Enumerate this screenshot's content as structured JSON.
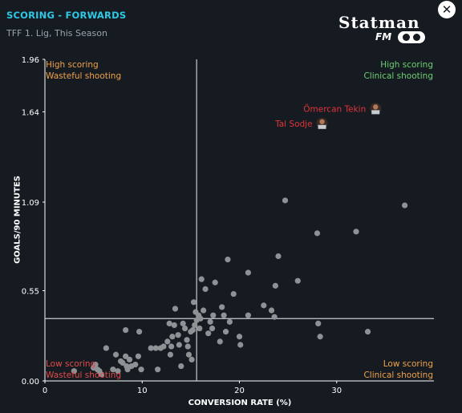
{
  "header": {
    "title": "SCORING - FORWARDS",
    "subtitle": "TFF 1. Lig, This Season",
    "logo_text": "Statman",
    "logo_sub": "FM"
  },
  "close_icon": "close-icon",
  "quadrants": {
    "top_left": [
      "High scoring",
      "Wasteful shooting"
    ],
    "top_right": [
      "High scoring",
      "Clinical shooting"
    ],
    "bottom_left": [
      "Low scoring",
      "Wasteful shooting"
    ],
    "bottom_right": [
      "Low scoring",
      "Clinical shooting"
    ]
  },
  "colors": {
    "background": "#151b21",
    "title": "#2ec8e6",
    "point": "#8f9295",
    "highlight_label": "#e0343a",
    "clinical": "#6fcf72",
    "wasteful_high": "#f0a24a",
    "low_wasteful": "#e24a4a"
  },
  "chart_data": {
    "type": "scatter",
    "title": "SCORING - FORWARDS",
    "xlabel": "CONVERSION RATE (%)",
    "ylabel": "GOALS/90 MINUTES",
    "xlim": [
      0,
      40
    ],
    "ylim": [
      0,
      1.96
    ],
    "x_ticks": [
      "0",
      "10",
      "20",
      "30"
    ],
    "x_tick_values": [
      0,
      10,
      20,
      30
    ],
    "y_ticks": [
      "0.00",
      "0.55",
      "1.09",
      "1.64",
      "1.96"
    ],
    "y_tick_values": [
      0,
      0.55,
      1.09,
      1.64,
      1.96
    ],
    "reference_lines": {
      "x": 15.6,
      "y": 0.38
    },
    "highlighted": [
      {
        "name": "Ömercan Tekin",
        "x": 34.0,
        "y": 1.66
      },
      {
        "name": "Tal Sodje",
        "x": 28.5,
        "y": 1.57
      }
    ],
    "points": [
      [
        3.0,
        0.06
      ],
      [
        5.0,
        0.08
      ],
      [
        5.2,
        0.1
      ],
      [
        5.4,
        0.07
      ],
      [
        5.6,
        0.06
      ],
      [
        5.8,
        0.04
      ],
      [
        6.3,
        0.2
      ],
      [
        7.0,
        0.07
      ],
      [
        7.3,
        0.16
      ],
      [
        7.5,
        0.06
      ],
      [
        7.8,
        0.12
      ],
      [
        8.0,
        0.11
      ],
      [
        8.3,
        0.15
      ],
      [
        8.4,
        0.09
      ],
      [
        8.5,
        0.07
      ],
      [
        8.7,
        0.13
      ],
      [
        8.9,
        0.09
      ],
      [
        8.3,
        0.31
      ],
      [
        9.3,
        0.1
      ],
      [
        9.6,
        0.15
      ],
      [
        9.7,
        0.3
      ],
      [
        9.9,
        0.07
      ],
      [
        10.9,
        0.2
      ],
      [
        11.4,
        0.2
      ],
      [
        11.6,
        0.07
      ],
      [
        11.9,
        0.2
      ],
      [
        12.2,
        0.21
      ],
      [
        12.6,
        0.24
      ],
      [
        12.8,
        0.35
      ],
      [
        12.9,
        0.16
      ],
      [
        13.1,
        0.27
      ],
      [
        13.3,
        0.34
      ],
      [
        13.0,
        0.21
      ],
      [
        13.4,
        0.44
      ],
      [
        13.7,
        0.28
      ],
      [
        13.8,
        0.22
      ],
      [
        14.0,
        0.09
      ],
      [
        14.2,
        0.35
      ],
      [
        14.4,
        0.32
      ],
      [
        14.6,
        0.25
      ],
      [
        14.7,
        0.21
      ],
      [
        14.8,
        0.16
      ],
      [
        15.0,
        0.3
      ],
      [
        15.1,
        0.13
      ],
      [
        15.2,
        0.31
      ],
      [
        15.3,
        0.48
      ],
      [
        15.4,
        0.34
      ],
      [
        15.5,
        0.42
      ],
      [
        15.6,
        0.37
      ],
      [
        15.8,
        0.4
      ],
      [
        15.9,
        0.32
      ],
      [
        16.0,
        0.38
      ],
      [
        16.1,
        0.62
      ],
      [
        16.3,
        0.43
      ],
      [
        16.5,
        0.56
      ],
      [
        16.8,
        0.29
      ],
      [
        17.0,
        0.36
      ],
      [
        17.2,
        0.32
      ],
      [
        17.3,
        0.4
      ],
      [
        17.5,
        0.6
      ],
      [
        18.0,
        0.24
      ],
      [
        18.2,
        0.45
      ],
      [
        18.4,
        0.4
      ],
      [
        18.6,
        0.3
      ],
      [
        18.8,
        0.74
      ],
      [
        19.0,
        0.36
      ],
      [
        19.4,
        0.53
      ],
      [
        20.0,
        0.27
      ],
      [
        20.1,
        0.22
      ],
      [
        20.9,
        0.4
      ],
      [
        20.9,
        0.66
      ],
      [
        22.5,
        0.46
      ],
      [
        23.3,
        0.43
      ],
      [
        23.6,
        0.39
      ],
      [
        23.7,
        0.58
      ],
      [
        24.0,
        0.76
      ],
      [
        26.0,
        0.61
      ],
      [
        28.1,
        0.35
      ],
      [
        28.3,
        0.27
      ],
      [
        24.7,
        1.1
      ],
      [
        28.0,
        0.9
      ],
      [
        32.0,
        0.91
      ],
      [
        37.0,
        1.07
      ],
      [
        33.2,
        0.3
      ]
    ]
  }
}
